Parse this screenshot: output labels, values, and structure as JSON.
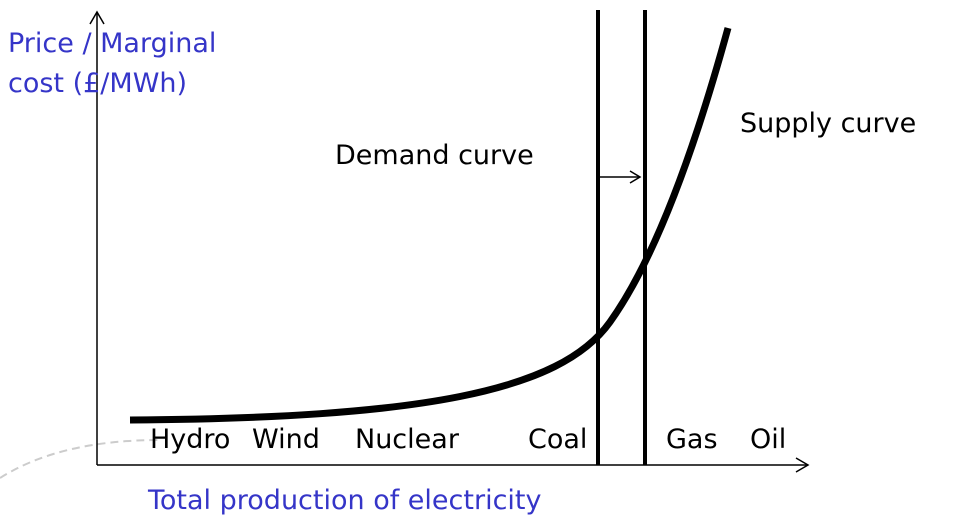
{
  "axes": {
    "y_label": [
      "Price / Marginal",
      "cost (£/MWh)"
    ],
    "x_label": "Total production of electricity"
  },
  "curves": {
    "demand": "Demand curve",
    "supply": "Supply curve"
  },
  "sources": [
    "Hydro",
    "Wind",
    "Nuclear",
    "Coal",
    "Gas",
    "Oil"
  ]
}
